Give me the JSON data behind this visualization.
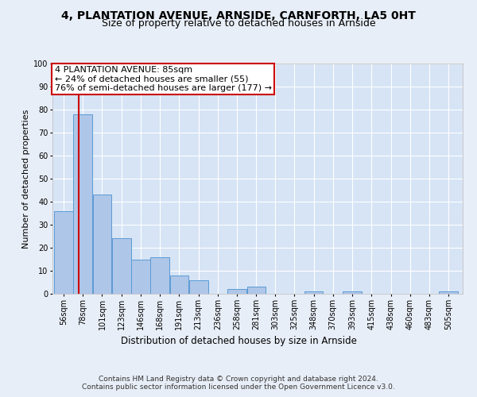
{
  "title1": "4, PLANTATION AVENUE, ARNSIDE, CARNFORTH, LA5 0HT",
  "title2": "Size of property relative to detached houses in Arnside",
  "xlabel": "Distribution of detached houses by size in Arnside",
  "ylabel": "Number of detached properties",
  "categories": [
    "56sqm",
    "78sqm",
    "101sqm",
    "123sqm",
    "146sqm",
    "168sqm",
    "191sqm",
    "213sqm",
    "236sqm",
    "258sqm",
    "281sqm",
    "303sqm",
    "325sqm",
    "348sqm",
    "370sqm",
    "393sqm",
    "415sqm",
    "438sqm",
    "460sqm",
    "483sqm",
    "505sqm"
  ],
  "values": [
    36,
    78,
    43,
    24,
    15,
    16,
    8,
    6,
    0,
    2,
    3,
    0,
    0,
    1,
    0,
    1,
    0,
    0,
    0,
    0,
    1
  ],
  "bar_color": "#aec6e8",
  "bar_edge_color": "#5b9bd5",
  "property_line_x": 85,
  "bin_edges": [
    56,
    78,
    101,
    123,
    146,
    168,
    191,
    213,
    236,
    258,
    281,
    303,
    325,
    348,
    370,
    393,
    415,
    438,
    460,
    483,
    505,
    528
  ],
  "annotation_text": "4 PLANTATION AVENUE: 85sqm\n← 24% of detached houses are smaller (55)\n76% of semi-detached houses are larger (177) →",
  "annotation_box_color": "#ffffff",
  "annotation_box_edge_color": "#cc0000",
  "vline_color": "#cc0000",
  "footer_line1": "Contains HM Land Registry data © Crown copyright and database right 2024.",
  "footer_line2": "Contains public sector information licensed under the Open Government Licence v3.0.",
  "ylim": [
    0,
    100
  ],
  "background_color": "#e8eef7",
  "plot_background": "#d6e4f5",
  "grid_color": "#ffffff",
  "title1_fontsize": 10,
  "title2_fontsize": 9,
  "xlabel_fontsize": 8.5,
  "ylabel_fontsize": 8,
  "tick_fontsize": 7,
  "footer_fontsize": 6.5,
  "annotation_fontsize": 8
}
